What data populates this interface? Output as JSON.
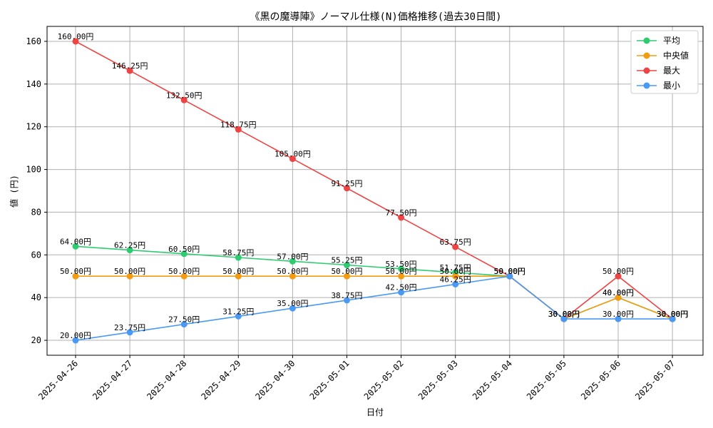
{
  "chart_data": {
    "type": "line",
    "title": "《黒の魔導陣》ノーマル仕様(N)価格推移(過去30日間)",
    "xlabel": "日付",
    "ylabel": "値 (円)",
    "categories": [
      "2025-04-26",
      "2025-04-27",
      "2025-04-28",
      "2025-04-29",
      "2025-04-30",
      "2025-05-01",
      "2025-05-02",
      "2025-05-03",
      "2025-05-04",
      "2025-05-05",
      "2025-05-06",
      "2025-05-07"
    ],
    "ylim": [
      13,
      167
    ],
    "yticks": [
      20,
      40,
      60,
      80,
      100,
      120,
      140,
      160
    ],
    "grid": true,
    "legend_position": "top-right",
    "value_suffix": "円",
    "series": [
      {
        "name": "平均",
        "color": "#2ecc71",
        "values": [
          64.0,
          62.25,
          60.5,
          58.75,
          57.0,
          55.25,
          53.5,
          51.75,
          50.0,
          30.0,
          40.0,
          30.0
        ]
      },
      {
        "name": "中央値",
        "color": "#f39c12",
        "values": [
          50.0,
          50.0,
          50.0,
          50.0,
          50.0,
          50.0,
          50.0,
          50.0,
          50.0,
          30.0,
          40.0,
          30.0
        ]
      },
      {
        "name": "最大",
        "color": "#ef4444",
        "values": [
          160.0,
          146.25,
          132.5,
          118.75,
          105.0,
          91.25,
          77.5,
          63.75,
          50.0,
          30.0,
          50.0,
          30.0
        ]
      },
      {
        "name": "最小",
        "color": "#4a9af5",
        "values": [
          20.0,
          23.75,
          27.5,
          31.25,
          35.0,
          38.75,
          42.5,
          46.25,
          50.0,
          30.0,
          30.0,
          30.0
        ]
      }
    ]
  }
}
